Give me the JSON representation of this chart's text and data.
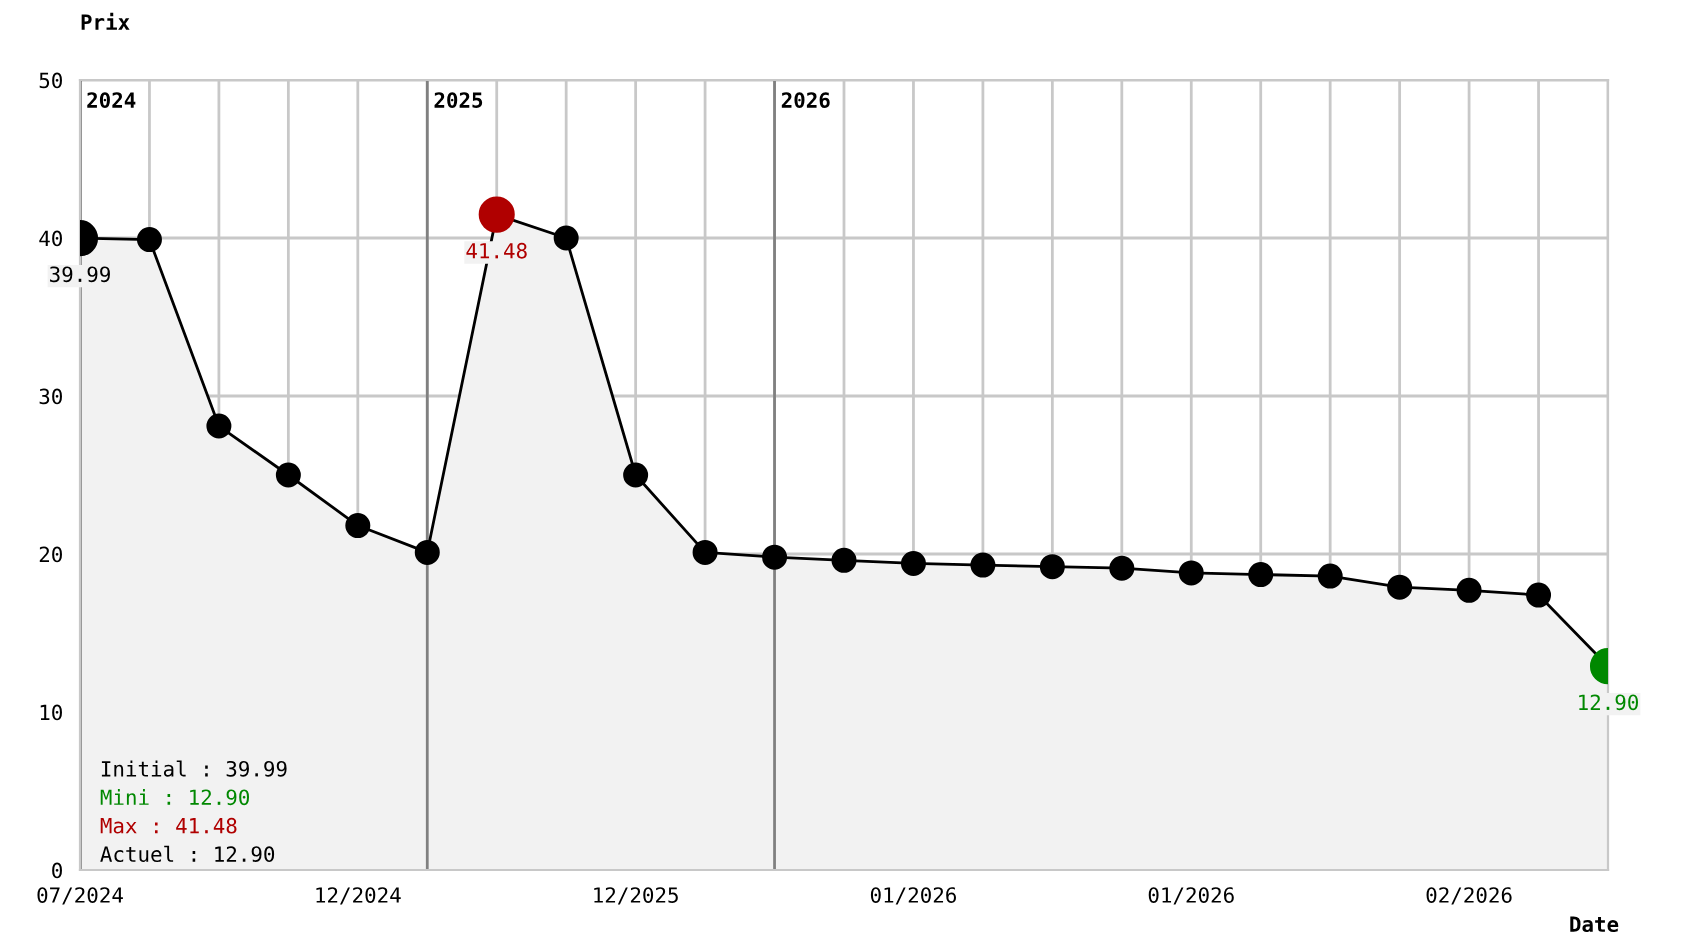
{
  "chart_data": {
    "type": "area",
    "ylabel": "Prix",
    "xlabel": "Date",
    "categories": [
      "07/2024",
      null,
      null,
      null,
      "12/2024",
      null,
      null,
      null,
      "12/2025",
      null,
      null,
      null,
      "01/2026",
      null,
      null,
      null,
      "01/2026",
      null,
      null,
      null,
      "02/2026",
      null,
      null
    ],
    "series": [
      {
        "color": "#000000",
        "values": [
          39.99,
          39.9,
          28.1,
          25.0,
          21.8,
          20.1,
          41.48,
          40.0,
          25.0,
          20.1,
          19.8,
          19.6,
          19.4,
          19.3,
          19.2,
          19.1,
          18.8,
          18.7,
          18.6,
          17.9,
          17.7,
          17.4,
          12.9
        ],
        "colors": [
          "#000000",
          "#000000",
          "#000000",
          "#000000",
          "#000000",
          "#000000",
          "#b00000",
          "#000000",
          "#000000",
          "#000000",
          "#000000",
          "#000000",
          "#000000",
          "#000000",
          "#000000",
          "#000000",
          "#000000",
          "#000000",
          "#000000",
          "#000000",
          "#000000",
          "#000000",
          "#008800"
        ],
        "value_labels": [
          "39.99",
          null,
          null,
          null,
          null,
          null,
          "41.48",
          null,
          null,
          null,
          null,
          null,
          null,
          null,
          null,
          null,
          null,
          null,
          null,
          null,
          null,
          null,
          "12.90"
        ]
      }
    ],
    "ylim": [
      0,
      50
    ],
    "yticks": [
      0,
      10,
      20,
      30,
      40,
      50
    ],
    "annotations": [
      "2024",
      "2025",
      "2026",
      "Initial : 39.99",
      "Mini : 12.90",
      "Max : 41.48",
      "Actuel : 12.90"
    ],
    "grid": true,
    "marker": "circle"
  }
}
